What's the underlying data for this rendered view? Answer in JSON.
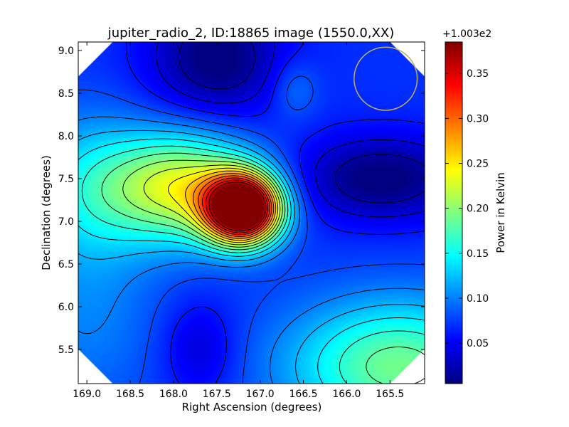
{
  "chart_data": {
    "type": "heatmap",
    "title": "jupiter_radio_2, ID:18865 image (1550.0,XX)",
    "xlabel": "Right Ascension (degrees)",
    "ylabel": "Declination (degrees)",
    "x_inverted": true,
    "xlim": [
      169.1,
      165.1
    ],
    "ylim": [
      5.1,
      9.1
    ],
    "xticks": [
      169.0,
      168.5,
      168.0,
      167.5,
      167.0,
      166.5,
      166.0,
      165.5
    ],
    "xtick_labels": [
      "169.0",
      "168.5",
      "168.0",
      "167.5",
      "167.0",
      "166.5",
      "166.0",
      "165.5"
    ],
    "yticks": [
      5.5,
      6.0,
      6.5,
      7.0,
      7.5,
      8.0,
      8.5,
      9.0
    ],
    "ytick_labels": [
      "5.5",
      "6.0",
      "6.5",
      "7.0",
      "7.5",
      "8.0",
      "8.5",
      "9.0"
    ],
    "colormap": "jet",
    "colorbar": {
      "label": "Power in Kelvin",
      "offset_text": "+1.003e2",
      "range": [
        0.005,
        0.385
      ],
      "ticks": [
        0.05,
        0.1,
        0.15,
        0.2,
        0.25,
        0.3,
        0.35
      ],
      "tick_labels": [
        "0.05",
        "0.10",
        "0.15",
        "0.20",
        "0.25",
        "0.30",
        "0.35"
      ]
    },
    "contours": true,
    "contour_color": "#000000",
    "features": [
      {
        "kind": "peak",
        "ra": 167.2,
        "dec": 7.15,
        "value": 0.385,
        "sx": 0.3,
        "sy": 0.28
      },
      {
        "kind": "ridge",
        "ra": 167.9,
        "dec": 7.4,
        "value": 0.16,
        "sx": 0.6,
        "sy": 0.45
      },
      {
        "kind": "ridge",
        "ra": 169.0,
        "dec": 7.4,
        "value": 0.06,
        "sx": 0.5,
        "sy": 0.6
      },
      {
        "kind": "high",
        "ra": 165.4,
        "dec": 5.3,
        "value": 0.12,
        "sx": 0.9,
        "sy": 0.55
      },
      {
        "kind": "high",
        "ra": 169.0,
        "dec": 5.9,
        "value": 0.03,
        "sx": 0.6,
        "sy": 0.8
      },
      {
        "kind": "trough",
        "ra": 167.5,
        "dec": 8.9,
        "value": -0.07,
        "sx": 0.55,
        "sy": 0.5
      },
      {
        "kind": "trough",
        "ra": 165.6,
        "dec": 7.5,
        "value": -0.07,
        "sx": 0.7,
        "sy": 0.35
      },
      {
        "kind": "trough",
        "ra": 167.7,
        "dec": 5.5,
        "value": -0.035,
        "sx": 0.3,
        "sy": 0.4
      },
      {
        "kind": "bump",
        "ra": 166.6,
        "dec": 8.55,
        "value": 0.03,
        "sx": 0.2,
        "sy": 0.25
      }
    ],
    "beam_circle": {
      "ra": 165.55,
      "dec": 8.67,
      "radius_deg": 0.37,
      "color": "#bfb060"
    }
  }
}
